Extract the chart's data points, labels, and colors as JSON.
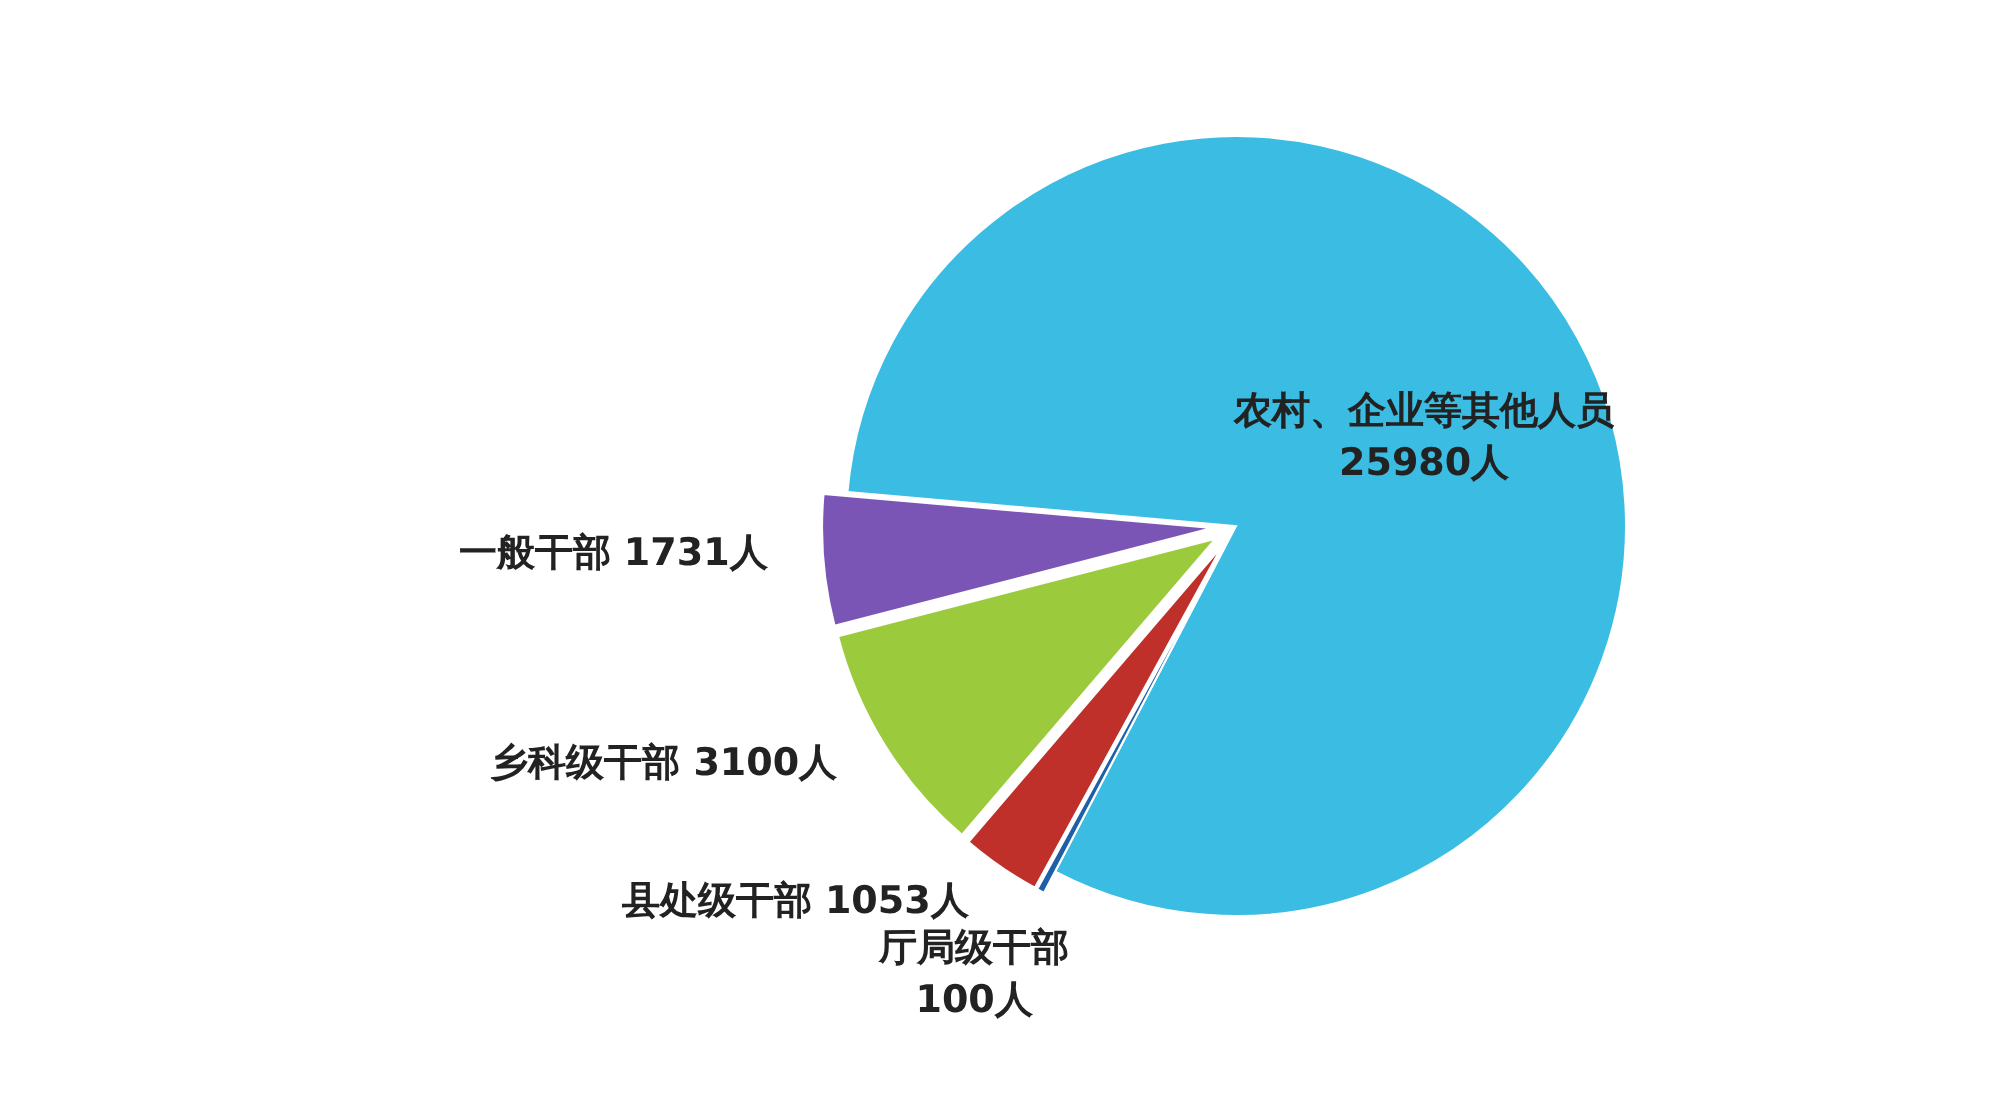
{
  "chart_data": {
    "type": "pie",
    "categories": [
      "农村、企业等其他人员",
      "厅局级干部",
      "县处级干部",
      "乡科级干部",
      "一般干部"
    ],
    "values": [
      25980,
      100,
      1053,
      3100,
      1731
    ],
    "value_labels": [
      "25980人",
      "100人",
      "1053人",
      "3100人",
      "1731人"
    ],
    "colors": [
      "#3bbde3",
      "#1f5fa8",
      "#c0302b",
      "#9bcb3c",
      "#7b55b5"
    ]
  }
}
